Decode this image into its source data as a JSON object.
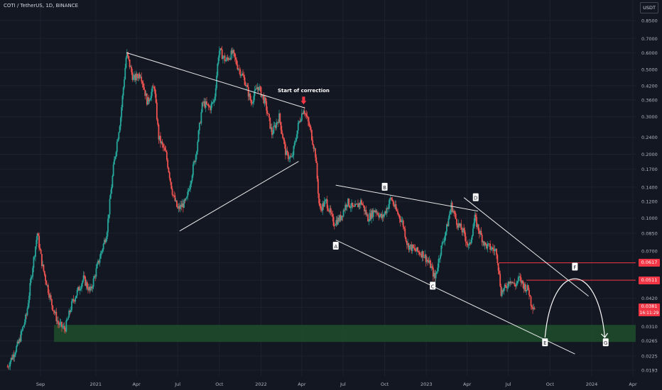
{
  "header": {
    "symbol": "COTI / TetherUS, 1D, BINANCE",
    "unit": "USDT"
  },
  "price_tags": [
    {
      "label": "0.0617",
      "value": 0.0617
    },
    {
      "label": "0.0511",
      "value": 0.0511
    }
  ],
  "last_price": {
    "label": "0.0381",
    "countdown": "16:11:29",
    "value": 0.0381
  },
  "chart_data": {
    "type": "candlestick",
    "title": "",
    "y_scale": "log",
    "y_ticks": [
      0.85,
      0.7,
      0.6,
      0.5,
      0.42,
      0.36,
      0.3,
      0.24,
      0.2,
      0.17,
      0.14,
      0.12,
      0.1,
      0.085,
      0.07,
      0.0617,
      0.0511,
      0.042,
      0.0381,
      0.031,
      0.0265,
      0.0225,
      0.0193
    ],
    "y_tick_labels": [
      "0.8500",
      "0.7000",
      "0.6000",
      "0.5000",
      "0.4200",
      "0.3600",
      "0.3000",
      "0.2400",
      "0.2000",
      "0.1700",
      "0.1400",
      "0.1200",
      "0.1000",
      "0.0850",
      "0.0700",
      "0.0617",
      "0.0511",
      "0.0420",
      "0.0381",
      "0.0310",
      "0.0265",
      "0.0225",
      "0.0193"
    ],
    "x_ticks": [
      "Sep",
      "2021",
      "Apr",
      "Jul",
      "Oct",
      "2022",
      "Apr",
      "Jul",
      "Oct",
      "2023",
      "Apr",
      "Jul",
      "Oct",
      "2024",
      "Apr"
    ],
    "x_tick_dates": [
      "2020-09-01",
      "2021-01-01",
      "2021-04-01",
      "2021-07-01",
      "2021-10-01",
      "2022-01-01",
      "2022-04-01",
      "2022-07-01",
      "2022-10-01",
      "2023-01-01",
      "2023-04-01",
      "2023-07-01",
      "2023-10-01",
      "2024-01-01",
      "2024-04-01"
    ],
    "price_path": [
      [
        "2020-06-20",
        0.02
      ],
      [
        "2020-07-15",
        0.026
      ],
      [
        "2020-08-01",
        0.035
      ],
      [
        "2020-08-15",
        0.06
      ],
      [
        "2020-08-25",
        0.085
      ],
      [
        "2020-09-05",
        0.06
      ],
      [
        "2020-09-25",
        0.04
      ],
      [
        "2020-10-10",
        0.032
      ],
      [
        "2020-10-25",
        0.03
      ],
      [
        "2020-11-10",
        0.04
      ],
      [
        "2020-12-05",
        0.052
      ],
      [
        "2020-12-20",
        0.045
      ],
      [
        "2021-01-05",
        0.06
      ],
      [
        "2021-01-25",
        0.085
      ],
      [
        "2021-02-10",
        0.18
      ],
      [
        "2021-02-25",
        0.3
      ],
      [
        "2021-03-10",
        0.6
      ],
      [
        "2021-03-25",
        0.45
      ],
      [
        "2021-04-10",
        0.48
      ],
      [
        "2021-04-25",
        0.35
      ],
      [
        "2021-05-10",
        0.42
      ],
      [
        "2021-05-20",
        0.24
      ],
      [
        "2021-06-05",
        0.2
      ],
      [
        "2021-06-20",
        0.13
      ],
      [
        "2021-07-01",
        0.11
      ],
      [
        "2021-07-20",
        0.12
      ],
      [
        "2021-08-10",
        0.2
      ],
      [
        "2021-08-25",
        0.35
      ],
      [
        "2021-09-10",
        0.33
      ],
      [
        "2021-09-20",
        0.36
      ],
      [
        "2021-09-30",
        0.62
      ],
      [
        "2021-10-15",
        0.55
      ],
      [
        "2021-10-30",
        0.6
      ],
      [
        "2021-11-10",
        0.52
      ],
      [
        "2021-11-25",
        0.45
      ],
      [
        "2021-12-10",
        0.35
      ],
      [
        "2021-12-25",
        0.42
      ],
      [
        "2022-01-10",
        0.35
      ],
      [
        "2022-01-25",
        0.25
      ],
      [
        "2022-02-10",
        0.3
      ],
      [
        "2022-02-25",
        0.2
      ],
      [
        "2022-03-10",
        0.19
      ],
      [
        "2022-03-25",
        0.28
      ],
      [
        "2022-04-05",
        0.33
      ],
      [
        "2022-04-20",
        0.26
      ],
      [
        "2022-05-01",
        0.2
      ],
      [
        "2022-05-10",
        0.11
      ],
      [
        "2022-05-25",
        0.12
      ],
      [
        "2022-06-10",
        0.095
      ],
      [
        "2022-06-25",
        0.1
      ],
      [
        "2022-07-10",
        0.12
      ],
      [
        "2022-07-25",
        0.11
      ],
      [
        "2022-08-10",
        0.12
      ],
      [
        "2022-08-25",
        0.1
      ],
      [
        "2022-09-10",
        0.11
      ],
      [
        "2022-09-25",
        0.1
      ],
      [
        "2022-10-05",
        0.11
      ],
      [
        "2022-10-15",
        0.125
      ],
      [
        "2022-10-25",
        0.11
      ],
      [
        "2022-11-10",
        0.095
      ],
      [
        "2022-11-20",
        0.075
      ],
      [
        "2022-12-10",
        0.07
      ],
      [
        "2022-12-25",
        0.068
      ],
      [
        "2023-01-10",
        0.06
      ],
      [
        "2023-01-20",
        0.052
      ],
      [
        "2023-02-01",
        0.07
      ],
      [
        "2023-02-15",
        0.09
      ],
      [
        "2023-02-25",
        0.115
      ],
      [
        "2023-03-10",
        0.095
      ],
      [
        "2023-03-25",
        0.085
      ],
      [
        "2023-04-05",
        0.072
      ],
      [
        "2023-04-18",
        0.1
      ],
      [
        "2023-04-25",
        0.09
      ],
      [
        "2023-05-10",
        0.075
      ],
      [
        "2023-05-25",
        0.072
      ],
      [
        "2023-06-05",
        0.07
      ],
      [
        "2023-06-15",
        0.045
      ],
      [
        "2023-06-25",
        0.047
      ],
      [
        "2023-07-05",
        0.052
      ],
      [
        "2023-07-15",
        0.048
      ],
      [
        "2023-07-25",
        0.052
      ],
      [
        "2023-08-05",
        0.048
      ],
      [
        "2023-08-15",
        0.046
      ],
      [
        "2023-08-20",
        0.04
      ],
      [
        "2023-08-28",
        0.038
      ]
    ],
    "annotations": {
      "labels": [
        {
          "text": "A",
          "date": "2022-06-15",
          "price": 0.074
        },
        {
          "text": "B",
          "date": "2022-10-01",
          "price": 0.14
        },
        {
          "text": "C",
          "date": "2023-01-15",
          "price": 0.048
        },
        {
          "text": "D",
          "date": "2023-04-20",
          "price": 0.125
        },
        {
          "text": "E",
          "date": "2023-09-20",
          "price": 0.026
        },
        {
          "text": "F",
          "date": "2023-11-25",
          "price": 0.059
        },
        {
          "text": "G",
          "date": "2024-02-01",
          "price": 0.026
        }
      ],
      "callout": {
        "text": "Start of correction",
        "date": "2022-04-05",
        "price": 0.33
      },
      "horizontal_levels": [
        0.0617,
        0.0511
      ],
      "support_zone": [
        0.0262,
        0.0315
      ]
    }
  }
}
